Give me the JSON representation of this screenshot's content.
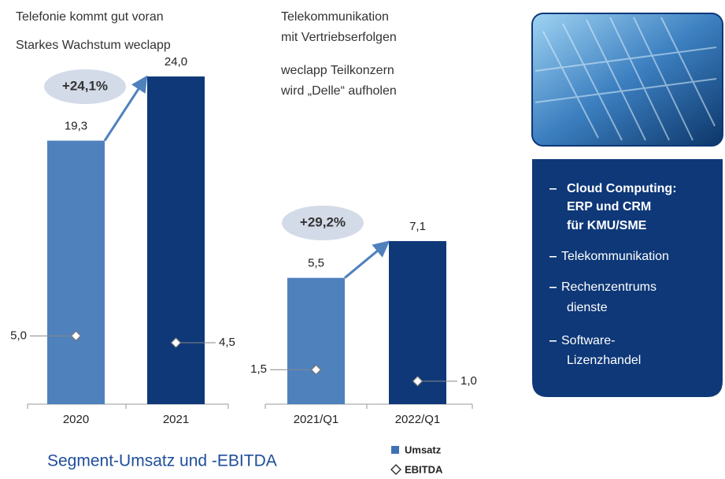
{
  "chart_data": [
    {
      "type": "bar",
      "annotations": [
        "Telefonie kommt gut voran",
        "Starkes Wachstum weclapp"
      ],
      "growth_label": "+24,1%",
      "categories": [
        "2020",
        "2021"
      ],
      "colors": [
        "#4f81bd",
        "#0e3878"
      ],
      "series": [
        {
          "name": "Umsatz",
          "color": "#3f72b5",
          "values": [
            19.3,
            24.0
          ],
          "value_labels": [
            "19,3",
            "24,0"
          ]
        },
        {
          "name": "EBITDA",
          "color": "#ffffff",
          "values": [
            5.0,
            4.5
          ],
          "value_labels": [
            "5,0",
            "4,5"
          ]
        }
      ]
    },
    {
      "type": "bar",
      "annotations": [
        "Telekommunikation",
        "mit Vertriebserfolgen",
        "weclapp Teilkonzern",
        "wird „Delle“ aufholen"
      ],
      "growth_label": "+29,2%",
      "categories": [
        "2021/Q1",
        "2022/Q1"
      ],
      "colors": [
        "#4f81bd",
        "#0e3878"
      ],
      "series": [
        {
          "name": "Umsatz",
          "color": "#3f72b5",
          "values": [
            5.5,
            7.1
          ],
          "value_labels": [
            "5,5",
            "7,1"
          ]
        },
        {
          "name": "EBITDA",
          "color": "#ffffff",
          "values": [
            1.5,
            1.0
          ],
          "value_labels": [
            "1,5",
            "1,0"
          ]
        }
      ]
    }
  ],
  "footer_title": "Segment-Umsatz und -EBITDA",
  "sidebar": {
    "items": [
      {
        "bold": true,
        "lines": [
          "Cloud Computing:",
          "ERP und CRM",
          "für KMU/SME"
        ]
      },
      {
        "bold": false,
        "lines": [
          "Telekommunikation"
        ]
      },
      {
        "bold": false,
        "lines": [
          "Rechenzentrums",
          "dienste"
        ]
      },
      {
        "bold": false,
        "lines": [
          "Software-",
          "Lizenzhandel"
        ]
      }
    ]
  }
}
